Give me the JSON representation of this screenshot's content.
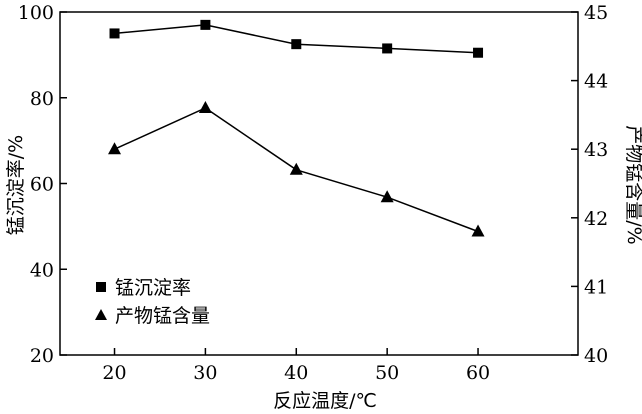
{
  "chart_data": {
    "type": "line",
    "title": "",
    "xlabel": "反应温度/℃",
    "ylabel": "锰沉淀率/%",
    "y2label": "产物锰含量/%",
    "x": [
      20,
      30,
      40,
      50,
      60
    ],
    "xticks": [
      "20",
      "30",
      "40",
      "50",
      "60"
    ],
    "xlim": [
      14,
      71
    ],
    "ylim": [
      20,
      100
    ],
    "yticks": [
      "20",
      "40",
      "60",
      "80",
      "100"
    ],
    "y2lim": [
      40,
      45
    ],
    "y2ticks": [
      "40",
      "41",
      "42",
      "43",
      "44",
      "45"
    ],
    "grid": false,
    "legend_position": "bottom-left",
    "series": [
      {
        "name": "锰沉淀率",
        "axis": "left",
        "marker": "square",
        "values": [
          95.0,
          97.0,
          92.5,
          91.5,
          90.5
        ]
      },
      {
        "name": "产物锰含量",
        "axis": "right",
        "marker": "triangle",
        "values": [
          43.0,
          43.6,
          42.7,
          42.3,
          41.8
        ]
      }
    ]
  }
}
